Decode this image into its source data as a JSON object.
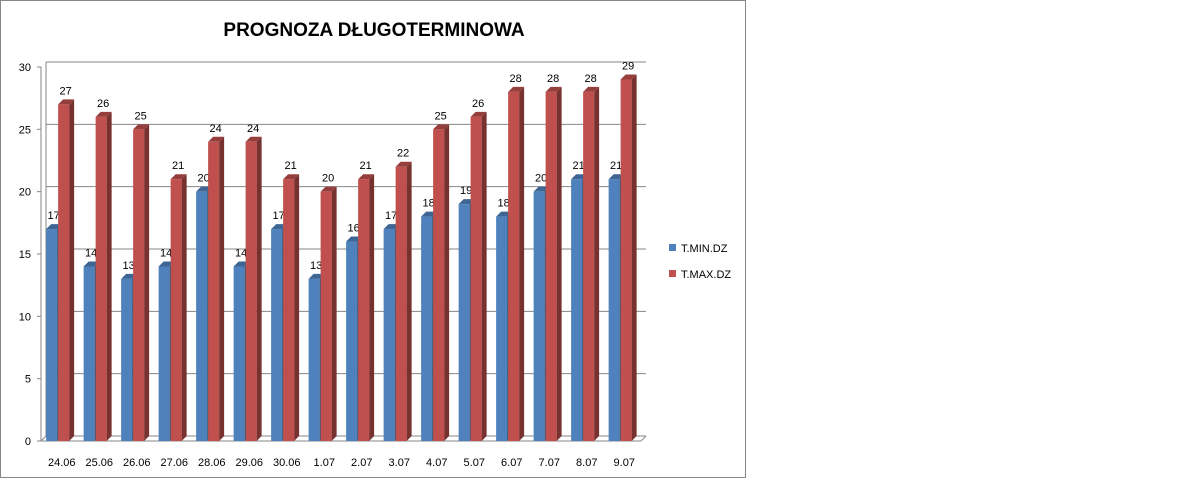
{
  "chart_data": {
    "type": "bar",
    "title": "PROGNOZA DŁUGOTERMINOWA",
    "xlabel": "",
    "ylabel": "",
    "ylim": [
      0,
      30
    ],
    "yticks": [
      0,
      5,
      10,
      15,
      20,
      25,
      30
    ],
    "grid": true,
    "legend_position": "right",
    "categories": [
      "24.06",
      "25.06",
      "26.06",
      "27.06",
      "28.06",
      "29.06",
      "30.06",
      "1.07",
      "2.07",
      "3.07",
      "4.07",
      "5.07",
      "6.07",
      "7.07",
      "8.07",
      "9.07"
    ],
    "series": [
      {
        "name": "T.MIN.DZ",
        "color": "#4f81bd",
        "values": [
          17,
          14,
          13,
          14,
          20,
          14,
          17,
          13,
          16,
          17,
          18,
          19,
          18,
          20,
          21,
          21
        ]
      },
      {
        "name": "T.MAX.DZ",
        "color": "#c0504d",
        "values": [
          27,
          26,
          25,
          21,
          24,
          24,
          21,
          20,
          21,
          22,
          25,
          26,
          28,
          28,
          28,
          29
        ]
      }
    ]
  }
}
